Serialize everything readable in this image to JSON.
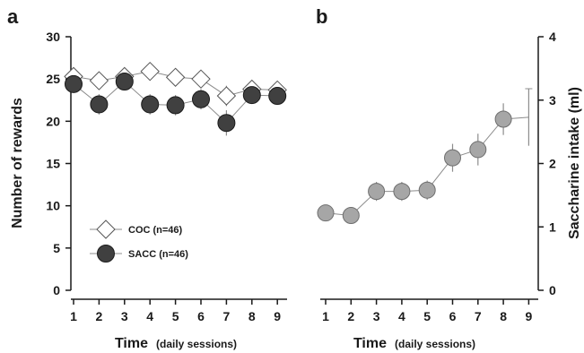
{
  "chart_data": [
    {
      "panel": "a",
      "type": "line",
      "xlabel_main": "Time",
      "xlabel_sub": "(daily sessions)",
      "ylabel": "Number of rewards",
      "x": [
        1,
        2,
        3,
        4,
        5,
        6,
        7,
        8,
        9
      ],
      "xticks": [
        "1",
        "2",
        "3",
        "4",
        "5",
        "6",
        "7",
        "8",
        "9"
      ],
      "yticks": [
        "0",
        "5",
        "10",
        "15",
        "20",
        "25",
        "30"
      ],
      "ylim": [
        0,
        30
      ],
      "series": [
        {
          "name": "COC (n=46)",
          "marker": "diamond-open",
          "values": [
            25.3,
            24.8,
            25.3,
            25.9,
            25.2,
            25.0,
            23.0,
            23.8,
            23.7
          ],
          "errors": [
            1.0,
            1.0,
            1.0,
            1.0,
            1.0,
            1.0,
            1.2,
            1.0,
            1.0
          ]
        },
        {
          "name": "SACC (n=46)",
          "marker": "circle-filled",
          "values": [
            24.4,
            22.0,
            24.7,
            22.0,
            21.9,
            22.6,
            19.8,
            23.1,
            23.0
          ],
          "errors": [
            1.0,
            1.2,
            1.0,
            1.2,
            1.2,
            1.2,
            1.5,
            1.0,
            1.0
          ]
        }
      ],
      "legend": "lower-left"
    },
    {
      "panel": "b",
      "type": "line",
      "xlabel_main": "Time",
      "xlabel_sub": "(daily sessions)",
      "ylabel": "Saccharine intake (ml)",
      "x": [
        1,
        2,
        3,
        4,
        5,
        6,
        7,
        8,
        9
      ],
      "xticks": [
        "1",
        "2",
        "3",
        "4",
        "5",
        "6",
        "7",
        "8",
        "9"
      ],
      "yticks": [
        "0",
        "1",
        "2",
        "3",
        "4"
      ],
      "ylim": [
        0,
        4
      ],
      "y_axis_side": "right",
      "series": [
        {
          "marker": "circle-gray",
          "values": [
            1.22,
            1.18,
            1.56,
            1.56,
            1.58,
            2.09,
            2.22,
            2.7,
            2.73
          ],
          "errors": [
            0.1,
            0.1,
            0.15,
            0.15,
            0.15,
            0.22,
            0.25,
            0.25,
            0.45
          ],
          "marker_hidden_at": [
            9
          ]
        }
      ]
    }
  ],
  "colors": {
    "axis": "#1a1a1a",
    "line": "#8c8c8c",
    "coc_fill": "#ffffff",
    "sacc_fill": "#404040",
    "sacc_stroke": "#1a1a1a",
    "sacch_fill": "#a6a6a6",
    "sacch_stroke": "#6e6e6e"
  }
}
